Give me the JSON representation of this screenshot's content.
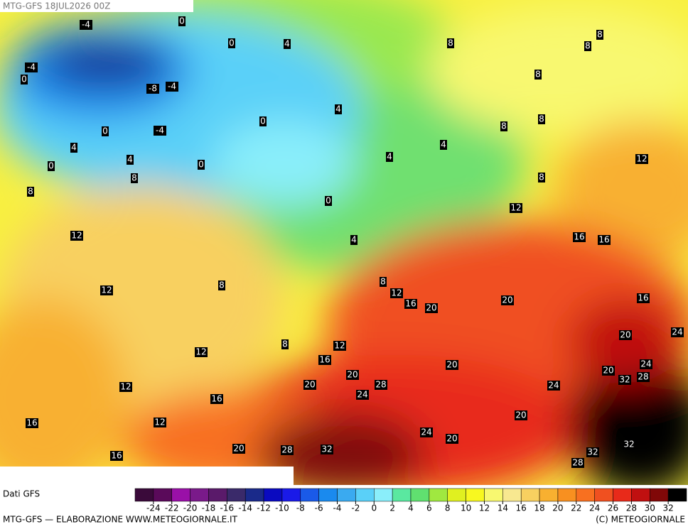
{
  "header": {
    "title": "MTG-GFS 18JUL2026 00Z"
  },
  "map": {
    "contour_labels": [
      -4,
      0,
      0,
      4,
      -4,
      0,
      -8,
      -4,
      -4,
      0,
      4,
      4,
      0,
      0,
      8,
      8,
      0,
      4,
      4,
      4,
      0,
      4,
      8,
      8,
      8,
      8,
      8,
      8,
      8,
      12,
      12,
      16,
      16,
      12,
      12,
      8,
      8,
      12,
      16,
      20,
      20,
      16,
      20,
      24,
      8,
      12,
      12,
      16,
      20,
      20,
      24,
      28,
      20,
      24,
      20,
      24,
      32,
      28,
      12,
      16,
      16,
      12,
      20,
      24,
      20,
      20,
      28,
      32,
      32,
      32,
      28,
      16
    ]
  },
  "legend": {
    "source": "Dati GFS",
    "ticks": [
      -24,
      -22,
      -20,
      -18,
      -16,
      -14,
      -12,
      -10,
      -8,
      -6,
      -4,
      -2,
      0,
      2,
      4,
      6,
      8,
      10,
      12,
      14,
      16,
      18,
      20,
      22,
      24,
      26,
      28,
      30,
      32
    ],
    "colors": [
      "#3a0a3a",
      "#5a0a5a",
      "#9a10a8",
      "#7a1a8a",
      "#5a1a6a",
      "#3a2a6a",
      "#1a2a8a",
      "#0a0ac0",
      "#1a1ae8",
      "#1a5ae8",
      "#1a8aee",
      "#3aaaf0",
      "#5ad0f8",
      "#8aeefa",
      "#5ae8a0",
      "#60e070",
      "#a0e840",
      "#e0f020",
      "#f8f820",
      "#f8f870",
      "#f8e890",
      "#f8d060",
      "#f8b030",
      "#f89020",
      "#f87020",
      "#f05020",
      "#e82a1a",
      "#c01010",
      "#800808",
      "#000000"
    ]
  },
  "footer": {
    "left": "MTG-GFS — ELABORAZIONE WWW.METEOGIORNALE.IT",
    "right": "(C) METEOGIORNALE"
  }
}
